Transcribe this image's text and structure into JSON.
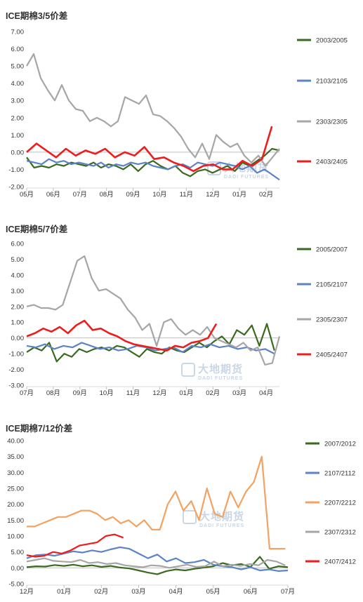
{
  "watermark": {
    "cn": "大地期货",
    "en": "DADI FUTURES"
  },
  "chart_data": [
    {
      "type": "line",
      "title": "ICE期棉3/5价差",
      "yticks": [
        "7.00",
        "6.00",
        "5.00",
        "4.00",
        "3.00",
        "2.00",
        "1.00",
        "0.00",
        "-1.00",
        "-2.00"
      ],
      "ylim": [
        -2,
        7
      ],
      "xticks": [
        "05月",
        "06月",
        "07月",
        "08月",
        "09月",
        "10月",
        "11月",
        "12月",
        "01月",
        "02月"
      ],
      "legend_position": "right",
      "series": [
        {
          "name": "2003/2005",
          "color": "#3a6a1f",
          "values": [
            -0.3,
            -0.9,
            -0.8,
            -0.9,
            -0.7,
            -0.8,
            -0.6,
            -0.7,
            -0.8,
            -0.6,
            -0.9,
            -0.7,
            -0.8,
            -1.0,
            -0.7,
            -1.1,
            -0.7,
            -0.5,
            -0.8,
            -1.0,
            -0.8,
            -1.2,
            -1.4,
            -1.1,
            -1.0,
            -1.2,
            -1.0,
            -0.8,
            -1.1,
            -0.6,
            -0.8,
            -0.5,
            -0.2,
            0.2,
            0.1
          ]
        },
        {
          "name": "2103/2105",
          "color": "#5b83c6",
          "values": [
            -0.5,
            -0.6,
            -0.7,
            -0.4,
            -0.6,
            -0.5,
            -0.7,
            -0.6,
            -0.7,
            -0.8,
            -0.6,
            -0.9,
            -0.7,
            -0.8,
            -0.6,
            -0.7,
            -0.6,
            -0.8,
            -0.9,
            -1.0,
            -0.8,
            -0.7,
            -0.9,
            -0.6,
            -0.7,
            -0.8,
            -0.6,
            -0.7,
            -0.8,
            -1.0,
            -0.8,
            -1.2,
            -1.0,
            -1.3,
            -1.6
          ]
        },
        {
          "name": "2303/2305",
          "color": "#a6a6a6",
          "values": [
            5.0,
            5.7,
            4.3,
            3.6,
            3.0,
            3.9,
            3.0,
            2.5,
            2.4,
            1.8,
            2.0,
            1.8,
            1.5,
            1.8,
            3.2,
            3.0,
            2.8,
            3.3,
            2.2,
            2.1,
            1.8,
            1.4,
            0.9,
            0.2,
            -0.3,
            0.5,
            -0.4,
            1.0,
            0.6,
            0.3,
            0.5,
            -0.2,
            -0.6,
            -0.2,
            -0.8,
            -0.3,
            0.2
          ]
        },
        {
          "name": "2403/2405",
          "color": "#ee1c1c",
          "values": [
            0.0,
            0.5,
            0.1,
            -0.3,
            0.2,
            -0.2,
            0.1,
            -0.1,
            0.2,
            -0.3,
            0.0,
            -0.2,
            0.3,
            -0.4,
            -0.3,
            -0.6,
            -0.8,
            -1.1,
            -0.8,
            -0.7,
            -1.0,
            -1.0,
            -0.5,
            -0.8,
            -0.4,
            1.5
          ]
        }
      ]
    },
    {
      "type": "line",
      "title": "ICE期棉5/7价差",
      "yticks": [
        "6.00",
        "5.00",
        "4.00",
        "3.00",
        "2.00",
        "1.00",
        "0.00",
        "-1.00",
        "-2.00",
        "-3.00"
      ],
      "ylim": [
        -3,
        6
      ],
      "xticks": [
        "07月",
        "08月",
        "09月",
        "10月",
        "11月",
        "12月",
        "01月",
        "02月",
        "03月",
        "04月"
      ],
      "legend_position": "right",
      "series": [
        {
          "name": "2005/2007",
          "color": "#3a6a1f",
          "values": [
            -0.9,
            -0.6,
            -0.8,
            -0.3,
            -1.5,
            -1.0,
            -1.2,
            -0.7,
            -0.9,
            -0.7,
            -0.6,
            -0.8,
            -0.5,
            -0.6,
            -0.9,
            -1.2,
            -0.7,
            -0.9,
            -1.0,
            -0.6,
            -0.8,
            -0.9,
            -0.6,
            -0.3,
            -0.6,
            -0.2,
            0.1,
            -0.4,
            0.5,
            0.2,
            0.8,
            -0.5,
            0.9,
            -0.8
          ]
        },
        {
          "name": "2105/2107",
          "color": "#5b83c6",
          "values": [
            -0.5,
            -0.6,
            -0.4,
            -0.7,
            -0.5,
            -0.6,
            -0.3,
            -0.5,
            -0.7,
            -0.6,
            -0.8,
            -0.7,
            -0.5,
            -0.6,
            -0.8,
            -0.7,
            -0.6,
            -0.9,
            -0.5,
            -0.6,
            -0.4,
            -0.6,
            -0.5,
            -0.7,
            -0.6,
            -0.8,
            -0.7,
            -1.0
          ]
        },
        {
          "name": "2305/2307",
          "color": "#a6a6a6",
          "values": [
            2.0,
            2.1,
            1.9,
            1.9,
            1.8,
            2.1,
            3.5,
            4.9,
            5.2,
            3.8,
            3.0,
            3.1,
            2.8,
            2.5,
            1.8,
            1.3,
            0.5,
            0.9,
            -0.5,
            1.0,
            1.2,
            0.6,
            0.2,
            0.5,
            0.2,
            0.7,
            0.0,
            -0.2,
            -0.4,
            -0.6,
            -0.3,
            -0.8,
            -0.6,
            -1.7,
            -1.6,
            0.1
          ]
        },
        {
          "name": "2405/2407",
          "color": "#ee1c1c",
          "values": [
            0.1,
            0.3,
            0.6,
            0.4,
            0.7,
            0.3,
            0.8,
            1.1,
            0.5,
            0.6,
            0.3,
            0.1,
            -0.2,
            -0.4,
            -0.5,
            -0.6,
            -0.7,
            -0.8,
            -0.5,
            -0.6,
            -0.3,
            -0.2,
            0.0,
            0.9
          ]
        }
      ]
    },
    {
      "type": "line",
      "title": "ICE期棉7/12价差",
      "yticks": [
        "40.00",
        "35.00",
        "30.00",
        "25.00",
        "20.00",
        "15.00",
        "10.00",
        "5.00",
        "0.00",
        "-5.00"
      ],
      "ylim": [
        -5,
        40
      ],
      "xticks": [
        "12月",
        "01月",
        "02月",
        "03月",
        "04月",
        "05月",
        "06月",
        "07月"
      ],
      "legend_position": "right",
      "series": [
        {
          "name": "2007/2012",
          "color": "#3a6a1f",
          "values": [
            0.2,
            0.5,
            0.4,
            0.9,
            0.6,
            1.0,
            0.5,
            0.8,
            0.3,
            0.6,
            0.1,
            -0.2,
            -0.8,
            -1.5,
            -2.0,
            -1.0,
            -0.5,
            -0.8,
            -0.3,
            0.1,
            0.5,
            1.5,
            0.8,
            1.2,
            0.3,
            3.5,
            -0.3,
            0.5,
            0.2
          ]
        },
        {
          "name": "2107/2112",
          "color": "#5b83c6",
          "values": [
            3.0,
            4.0,
            4.2,
            3.8,
            4.5,
            5.2,
            4.8,
            5.5,
            5.0,
            5.8,
            6.5,
            6.0,
            4.5,
            3.0,
            4.2,
            2.0,
            3.0,
            1.5,
            1.8,
            2.5,
            1.0,
            0.5,
            0.2,
            -0.5,
            0.2,
            -0.8,
            -0.5,
            -1.0,
            -0.8
          ]
        },
        {
          "name": "2207/2212",
          "color": "#f4a261",
          "values": [
            13,
            13,
            14,
            15,
            16,
            16,
            17,
            18,
            18,
            17,
            15,
            16,
            14,
            15,
            13,
            15,
            12,
            12,
            20,
            24,
            18,
            21,
            15,
            25,
            17,
            16,
            24,
            19,
            24,
            27,
            35,
            6,
            6,
            6
          ]
        },
        {
          "name": "2307/2312",
          "color": "#a6a6a6",
          "values": [
            2.0,
            2.5,
            3.0,
            2.2,
            2.0,
            1.8,
            2.5,
            1.5,
            1.8,
            1.2,
            1.5,
            0.8,
            0.5,
            0.2,
            0.8,
            0.6,
            0.0,
            0.5,
            1.0,
            0.3,
            0.5,
            2.0,
            0.5,
            1.0,
            0.6,
            1.2,
            0.8,
            2.5,
            2.0,
            0.8
          ]
        },
        {
          "name": "2407/2412",
          "color": "#ee1c1c",
          "values": [
            4.0,
            3.5,
            3.8,
            5.0,
            4.5,
            5.5,
            7.0,
            7.5,
            8.0,
            10.0,
            10.5,
            9.5
          ]
        }
      ]
    }
  ]
}
